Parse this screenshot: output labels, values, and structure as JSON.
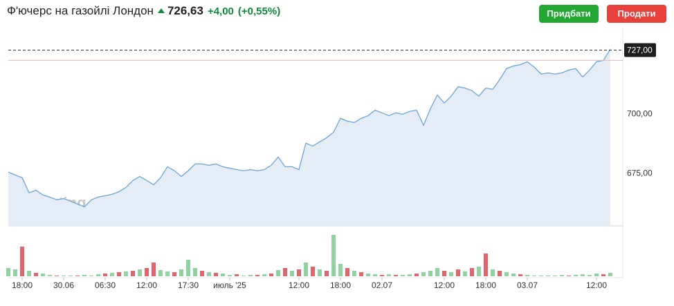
{
  "header": {
    "title": "Ф'ючерс на газойлі Лондон",
    "price": "726,63",
    "change": "+4,00",
    "change_percent": "(+0,55%)",
    "buy": "Придбати",
    "sell": "Продати"
  },
  "chart_data": {
    "type": "line",
    "area": true,
    "watermark": {
      "brand": "Investing",
      "suffix": ".com"
    },
    "categories": [
      null,
      null,
      "18:00",
      null,
      null,
      null,
      null,
      null,
      "30.06",
      null,
      null,
      null,
      null,
      null,
      "06:30",
      null,
      null,
      null,
      null,
      null,
      "12:00",
      null,
      null,
      null,
      null,
      null,
      "17:30",
      null,
      null,
      null,
      null,
      null,
      "июль '25",
      null,
      null,
      null,
      null,
      null,
      null,
      null,
      null,
      null,
      "12:00",
      null,
      null,
      null,
      null,
      null,
      "18:00",
      null,
      null,
      null,
      null,
      null,
      "02.07",
      null,
      null,
      null,
      null,
      null,
      null,
      null,
      null,
      "12:00",
      null,
      null,
      null,
      null,
      null,
      "18:00",
      null,
      null,
      null,
      null,
      null,
      "03.07",
      null,
      null,
      null,
      null,
      null,
      null,
      null,
      null,
      null,
      "12:00",
      null,
      null
    ],
    "series": [
      {
        "color": "#6aa5d8",
        "fill": "#e4edf6",
        "values": [
          675.6,
          674.4,
          673.3,
          666.9,
          668,
          666,
          665.1,
          664,
          664.5,
          663.4,
          662.2,
          661,
          664,
          665.1,
          665.7,
          666.3,
          667.4,
          669.2,
          672.1,
          673.8,
          672.1,
          670.3,
          673.3,
          677.9,
          676.2,
          673.8,
          676.2,
          679.1,
          679.1,
          678.5,
          679.1,
          677.9,
          677.3,
          676.7,
          676.2,
          676.7,
          676.2,
          676.7,
          678.5,
          682,
          677.9,
          677.9,
          676.7,
          687.8,
          686.6,
          688.4,
          690.1,
          692.4,
          698.3,
          697.1,
          696.5,
          698.3,
          699.4,
          701.7,
          700.6,
          699.4,
          700.6,
          700,
          701.2,
          701.7,
          695.3,
          702.3,
          708.1,
          704.7,
          707.6,
          711.6,
          711,
          709.9,
          707.6,
          711,
          710.5,
          714.5,
          719.2,
          720.3,
          720.9,
          722.1,
          719.8,
          716.9,
          717.4,
          716.9,
          717.4,
          718.6,
          719.2,
          715.7,
          718.6,
          722.1,
          722.7,
          727.3
        ]
      }
    ],
    "ylim": [
      653,
      735
    ],
    "yticks": [
      {
        "value": 675,
        "label": "675,00"
      },
      {
        "value": 700,
        "label": "700,00"
      }
    ],
    "current": {
      "value": 727,
      "label": "727,00"
    },
    "prev_close": 722.63,
    "volume": {
      "type": "bar",
      "up_color": "#8fd3a0",
      "down_color": "#e2646c",
      "ylim": [
        0,
        62
      ],
      "up": [
        12,
        10,
        null,
        8,
        null,
        4,
        2,
        null,
        1,
        1,
        null,
        2,
        1,
        3,
        null,
        5,
        null,
        7,
        null,
        10,
        null,
        null,
        9,
        7,
        null,
        10,
        24,
        12,
        null,
        6,
        null,
        4,
        2,
        null,
        1,
        2,
        null,
        3,
        null,
        9,
        null,
        8,
        null,
        20,
        null,
        10,
        null,
        60,
        18,
        null,
        8,
        null,
        4,
        3,
        null,
        3,
        null,
        2,
        3,
        null,
        6,
        8,
        12,
        null,
        6,
        null,
        7,
        null,
        14,
        null,
        10,
        null,
        6,
        4,
        null,
        2,
        1,
        1,
        1,
        1,
        2,
        null,
        2,
        3,
        2,
        4,
        null,
        5
      ],
      "down": [
        null,
        null,
        43,
        null,
        5,
        null,
        null,
        1,
        null,
        null,
        1,
        null,
        null,
        null,
        4,
        null,
        6,
        null,
        8,
        null,
        12,
        20,
        null,
        null,
        6,
        null,
        null,
        null,
        8,
        null,
        5,
        null,
        null,
        3,
        null,
        null,
        2,
        null,
        4,
        null,
        12,
        null,
        10,
        null,
        14,
        null,
        8,
        null,
        null,
        12,
        null,
        6,
        null,
        null,
        2,
        null,
        2,
        null,
        null,
        4,
        null,
        null,
        null,
        8,
        null,
        10,
        null,
        12,
        null,
        33,
        null,
        8,
        null,
        null,
        3,
        null,
        null,
        null,
        null,
        null,
        null,
        1,
        null,
        null,
        null,
        null,
        3,
        null
      ]
    }
  }
}
